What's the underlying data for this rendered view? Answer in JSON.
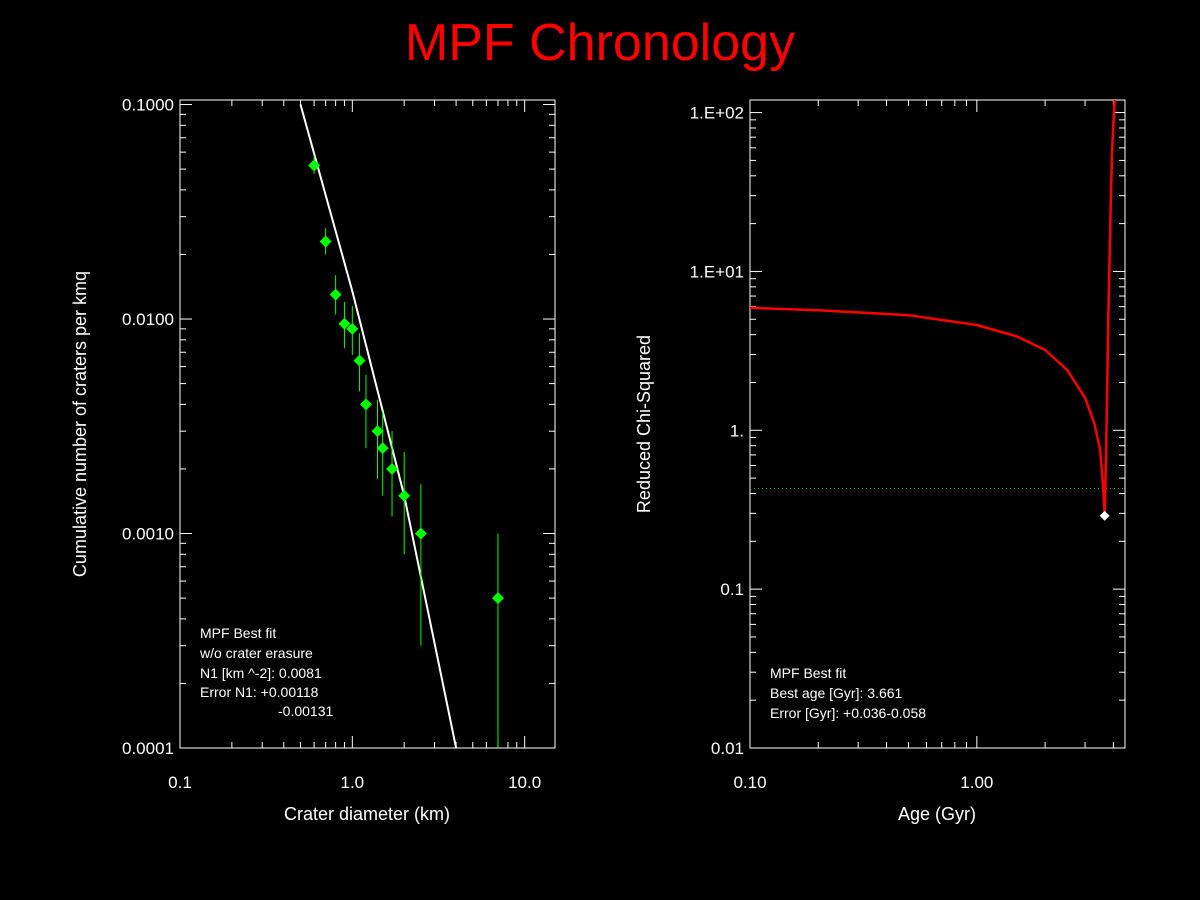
{
  "title": "MPF Chronology",
  "colors": {
    "background": "#000000",
    "title": "#ff0000",
    "axes": "#ffffff",
    "points": "#00ff00",
    "fit_line": "#ffffff",
    "curve": "#ff0000",
    "reference_line": "#00cc00",
    "min_marker": "#ffffff",
    "annotation_header": "#ff0000"
  },
  "chart_data": [
    {
      "type": "scatter",
      "xlabel": "Crater diameter (km)",
      "ylabel": "Cumulative number of craters per kmq",
      "x_scale": "log",
      "y_scale": "log",
      "xlim": [
        0.1,
        15
      ],
      "ylim": [
        0.0001,
        0.105
      ],
      "x_ticks": [
        0.1,
        1,
        10
      ],
      "x_tick_labels": [
        "0.1",
        "1.0",
        "10.0"
      ],
      "y_ticks": [
        0.0001,
        0.001,
        0.01,
        0.1
      ],
      "y_tick_labels": [
        "0.0001",
        "0.0010",
        "0.0100",
        "0.1000"
      ],
      "series": [
        {
          "points": [
            {
              "x": 0.6,
              "y": 0.052,
              "err_low": 0.0045,
              "err_high": 0.0055
            },
            {
              "x": 0.7,
              "y": 0.023,
              "err_low": 0.003,
              "err_high": 0.0035
            },
            {
              "x": 0.8,
              "y": 0.013,
              "err_low": 0.0025,
              "err_high": 0.003
            },
            {
              "x": 0.9,
              "y": 0.0095,
              "err_low": 0.0022,
              "err_high": 0.0025
            },
            {
              "x": 1.0,
              "y": 0.009,
              "err_low": 0.0022,
              "err_high": 0.0025
            },
            {
              "x": 1.1,
              "y": 0.0064,
              "err_low": 0.0018,
              "err_high": 0.0022
            },
            {
              "x": 1.2,
              "y": 0.004,
              "err_low": 0.0015,
              "err_high": 0.0015
            },
            {
              "x": 1.4,
              "y": 0.003,
              "err_low": 0.0012,
              "err_high": 0.0012
            },
            {
              "x": 1.5,
              "y": 0.0025,
              "err_low": 0.001,
              "err_high": 0.0012
            },
            {
              "x": 1.7,
              "y": 0.002,
              "err_low": 0.0008,
              "err_high": 0.001
            },
            {
              "x": 2.0,
              "y": 0.0015,
              "err_low": 0.0007,
              "err_high": 0.0009
            },
            {
              "x": 2.5,
              "y": 0.001,
              "err_low": 0.0007,
              "err_high": 0.0007
            },
            {
              "x": 7.0,
              "y": 0.0005,
              "err_low": 0.0004999,
              "err_high": 0.0005
            }
          ]
        },
        {
          "type": "line",
          "x": [
            0.5,
            1.0,
            2.0,
            4.0
          ],
          "y": [
            0.1,
            0.0135,
            0.0015,
            0.0001
          ]
        }
      ],
      "annotations": [
        "MPF Best fit",
        "w/o crater erasure",
        "N1 [km ^-2]: 0.0081",
        "Error N1: +0.00118",
        "-0.00131"
      ]
    },
    {
      "type": "line",
      "xlabel": "Age (Gyr)",
      "ylabel": "Reduced Chi-Squared",
      "x_scale": "log",
      "y_scale": "log",
      "xlim": [
        0.1,
        4.5
      ],
      "ylim": [
        0.01,
        120
      ],
      "x_ticks": [
        0.1,
        1
      ],
      "x_tick_labels": [
        "0.10",
        "1.00"
      ],
      "y_ticks": [
        0.01,
        0.1,
        1,
        10,
        100
      ],
      "y_tick_labels": [
        "0.01",
        "0.1",
        "1.",
        "1.E+01",
        "1.E+02"
      ],
      "series": [
        {
          "x": [
            0.1,
            0.2,
            0.5,
            1.0,
            1.5,
            2.0,
            2.5,
            3.0,
            3.3,
            3.5,
            3.6,
            3.661,
            3.72,
            3.8,
            3.9,
            3.95,
            4.05
          ],
          "y": [
            5.9,
            5.7,
            5.3,
            4.6,
            3.9,
            3.2,
            2.4,
            1.6,
            1.1,
            0.75,
            0.45,
            0.29,
            0.8,
            5.0,
            30,
            60,
            120
          ]
        }
      ],
      "reference_line_y": 0.43,
      "min_point": {
        "x": 3.661,
        "y": 0.29
      },
      "annotations": [
        "MPF Best fit",
        "Best age [Gyr]: 3.661",
        "Error [Gyr]: +0.036-0.058"
      ]
    }
  ]
}
